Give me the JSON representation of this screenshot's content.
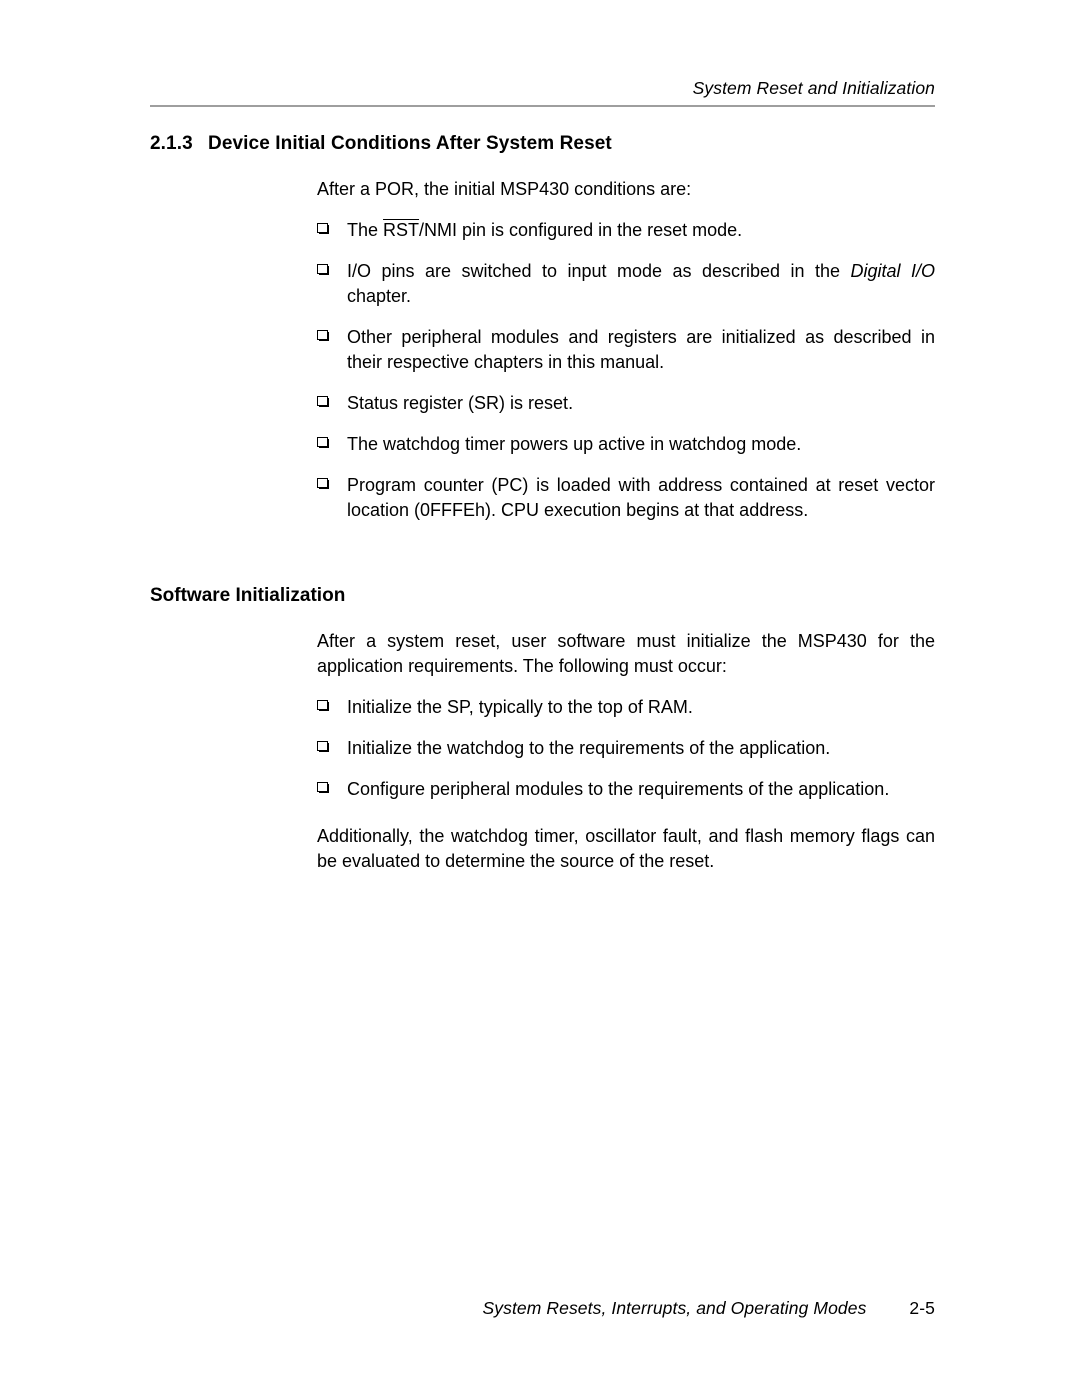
{
  "header": {
    "running": "System Reset and Initialization"
  },
  "section1": {
    "number": "2.1.3",
    "title": "Device Initial Conditions After System Reset",
    "intro": "After a POR, the initial MSP430 conditions are:",
    "bullets": {
      "b0_pre": "The ",
      "b0_rst": "RST",
      "b0_post": "/NMI pin is configured in the reset mode.",
      "b1_pre": "I/O pins are switched to input mode as described in the ",
      "b1_ital": "Digital I/O",
      "b1_post": " chapter.",
      "b2": "Other peripheral modules and registers are initialized as described in their respective chapters in this manual.",
      "b3": "Status register (SR) is reset.",
      "b4": "The watchdog timer powers up active in watchdog mode.",
      "b5": "Program counter (PC) is loaded with address contained at reset vector location (0FFFEh). CPU execution begins at that address."
    }
  },
  "section2": {
    "title": "Software Initialization",
    "intro": "After a system reset, user software must initialize the MSP430 for the application requirements. The following must occur:",
    "bullets": {
      "b0": "Initialize the SP, typically to the top of RAM.",
      "b1": "Initialize the watchdog to the requirements of the application.",
      "b2": "Configure peripheral modules to the requirements of the application."
    },
    "after": "Additionally, the watchdog timer, oscillator fault, and flash memory flags can be evaluated to determine the source of the reset."
  },
  "footer": {
    "text": "System Resets, Interrupts, and Operating Modes",
    "page": "2-5"
  },
  "style": {
    "marker_stroke": "#000000",
    "marker_fill": "#ffffff",
    "marker_shadow": "#000000"
  }
}
